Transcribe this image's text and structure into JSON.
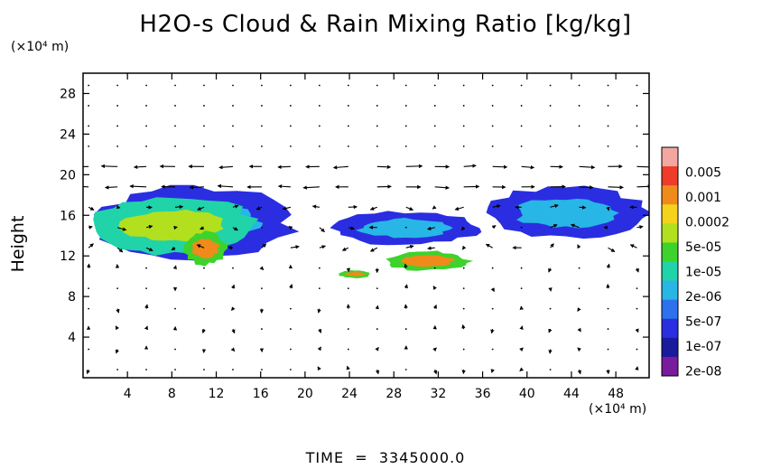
{
  "chart_data": {
    "type": "heatmap",
    "title": "H2O-s Cloud & Rain Mixing Ratio [kg/kg]",
    "ylabel": "Height",
    "x_unit": "(×10⁴ m)",
    "y_unit": "(×10⁴ m)",
    "xlim": [
      0,
      51
    ],
    "ylim": [
      0,
      30
    ],
    "x_ticks": [
      4,
      8,
      12,
      16,
      20,
      24,
      28,
      32,
      36,
      40,
      44,
      48
    ],
    "y_ticks": [
      4,
      8,
      12,
      16,
      20,
      24,
      28
    ],
    "colorbar": {
      "labels": [
        "0.005",
        "0.001",
        "0.0002",
        "5e-05",
        "1e-05",
        "2e-06",
        "5e-07",
        "1e-07",
        "2e-08"
      ],
      "colors": [
        "#f4a6a0",
        "#ee3b2a",
        "#f08a1a",
        "#f5d21c",
        "#b2e01e",
        "#3ed22c",
        "#21d3a8",
        "#27b6e6",
        "#2d72ec",
        "#2a2ee0",
        "#1a1a9c",
        "#7a1a9c"
      ]
    },
    "cloud_regions": [
      {
        "x": [
          0.5,
          19.5
        ],
        "y": [
          11.5,
          19.0
        ],
        "level": "1e-07"
      },
      {
        "x": [
          0.5,
          16.0
        ],
        "y": [
          12.0,
          18.0
        ],
        "level": "1e-05"
      },
      {
        "x": [
          9.0,
          13.0
        ],
        "y": [
          11.0,
          14.5
        ],
        "level": "5e-05"
      },
      {
        "x": [
          22.0,
          36.0
        ],
        "y": [
          13.0,
          16.5
        ],
        "level": "1e-07"
      },
      {
        "x": [
          27.0,
          35.0
        ],
        "y": [
          10.5,
          12.5
        ],
        "level": "5e-05"
      },
      {
        "x": [
          23.0,
          26.0
        ],
        "y": [
          9.8,
          10.6
        ],
        "level": "5e-05"
      },
      {
        "x": [
          36.0,
          51.0
        ],
        "y": [
          13.5,
          19.0
        ],
        "level": "1e-07"
      }
    ],
    "time_label": "TIME",
    "time_value": "3345000.0"
  }
}
